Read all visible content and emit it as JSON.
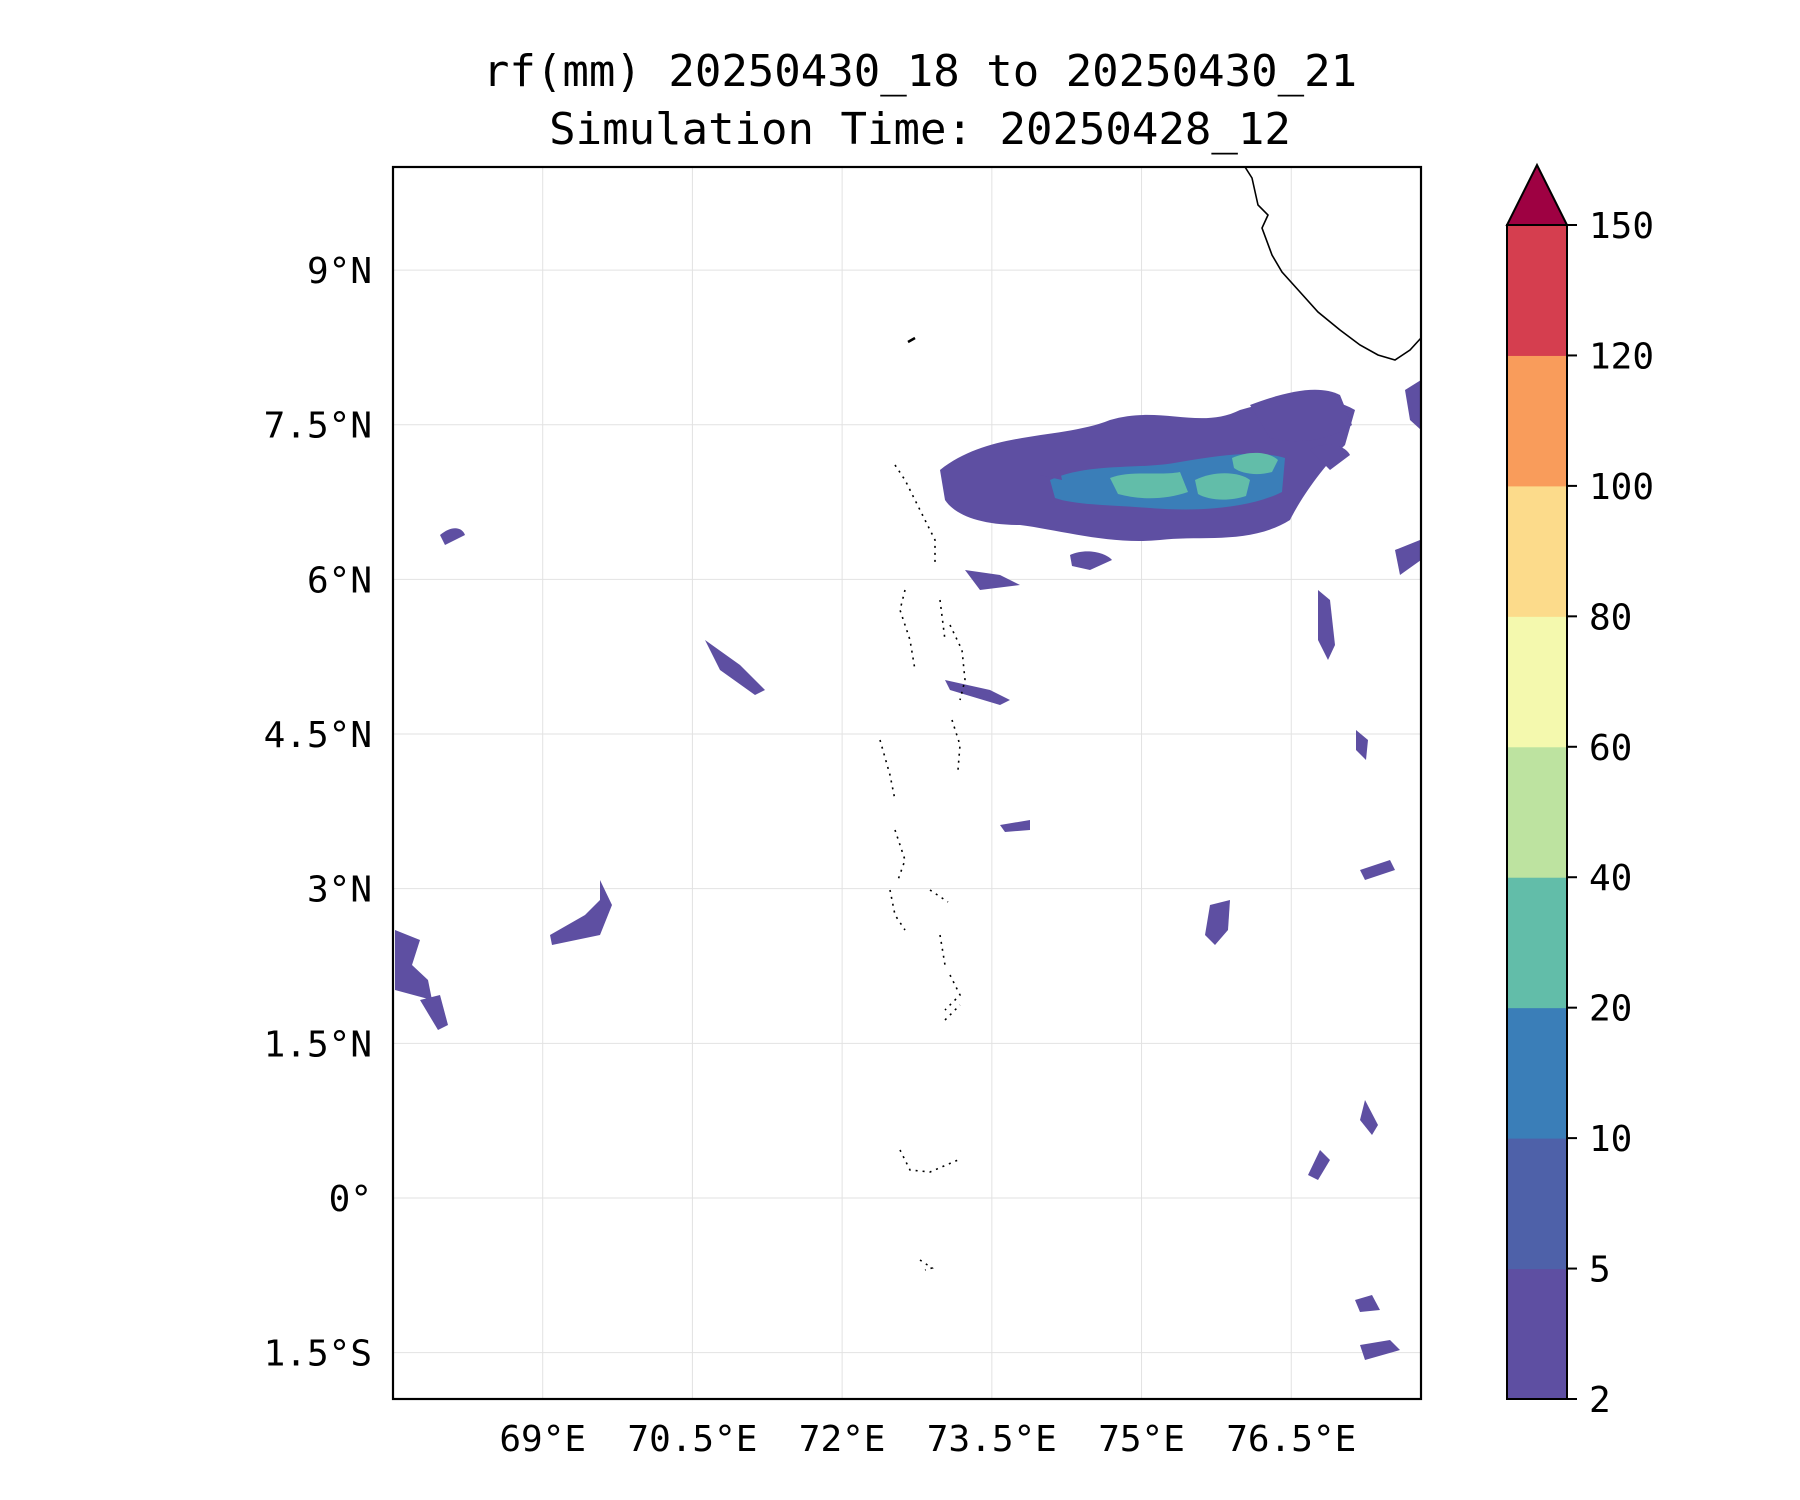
{
  "title": {
    "line1": "rf(mm) 20250430_18 to 20250430_21",
    "line2": "Simulation Time: 20250428_12"
  },
  "map": {
    "lon_range": [
      67.5,
      77.8
    ],
    "lat_range": [
      -1.95,
      10.0
    ],
    "lon_ticks": [
      {
        "value": 69.0,
        "label": "69°E"
      },
      {
        "value": 70.5,
        "label": "70.5°E"
      },
      {
        "value": 72.0,
        "label": "72°E"
      },
      {
        "value": 73.5,
        "label": "73.5°E"
      },
      {
        "value": 75.0,
        "label": "75°E"
      },
      {
        "value": 76.5,
        "label": "76.5°E"
      }
    ],
    "lat_ticks": [
      {
        "value": 9.0,
        "label": "9°N"
      },
      {
        "value": 7.5,
        "label": "7.5°N"
      },
      {
        "value": 6.0,
        "label": "6°N"
      },
      {
        "value": 4.5,
        "label": "4.5°N"
      },
      {
        "value": 3.0,
        "label": "3°N"
      },
      {
        "value": 1.5,
        "label": "1.5°N"
      },
      {
        "value": 0.0,
        "label": "0°"
      },
      {
        "value": -1.5,
        "label": "1.5°S"
      }
    ],
    "gridlines": true
  },
  "colorbar": {
    "levels": [
      "2",
      "5",
      "10",
      "20",
      "40",
      "60",
      "80",
      "100",
      "120",
      "150"
    ],
    "colors": [
      "#5e4fa2",
      "#4e61a9",
      "#3a7eb8",
      "#62bda9",
      "#bde3a0",
      "#f4f9ae",
      "#fcdb8b",
      "#f99c5b",
      "#d53e4f"
    ],
    "extend_color": "#9e0142",
    "extend": "max"
  }
}
